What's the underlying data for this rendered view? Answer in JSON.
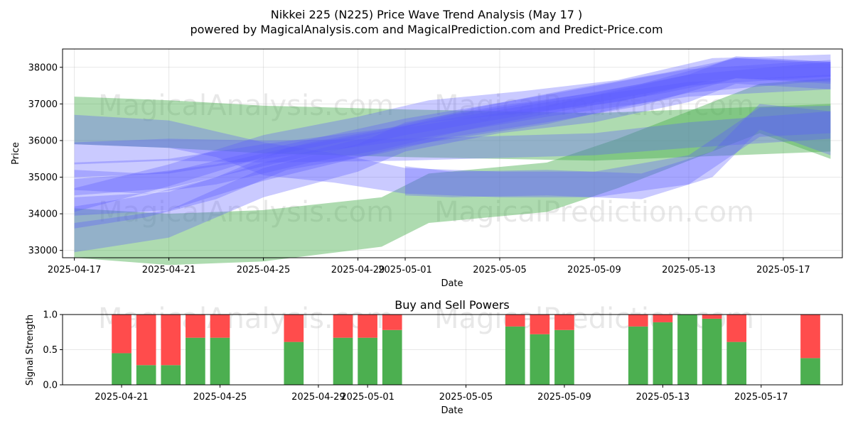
{
  "chart_data": [
    {
      "type": "area",
      "title": "Nikkei 225 (N225) Price Wave Trend Analysis (May 17 )",
      "subtitle": "powered by MagicalAnalysis.com and MagicalPrediction.com and Predict-Price.com",
      "xlabel": "Date",
      "ylabel": "Price",
      "xlim": [
        "2025-04-16.5",
        "2025-05-19.5"
      ],
      "ylim": [
        32800,
        38500
      ],
      "x_ticks": [
        "2025-04-17",
        "2025-04-21",
        "2025-04-25",
        "2025-04-29",
        "2025-05-01",
        "2025-05-05",
        "2025-05-09",
        "2025-05-13",
        "2025-05-17"
      ],
      "y_ticks": [
        33000,
        34000,
        35000,
        36000,
        37000,
        38000
      ],
      "grid": true,
      "watermarks": [
        "MagicalAnalysis.com",
        "MagicalPrediction.com",
        "MagicalAnalysis.com",
        "MagicalPrediction.com"
      ],
      "colors": {
        "up": "#4caf50",
        "down": "#5a5aff"
      },
      "series": [
        {
          "color": "green",
          "bands": [
            {
              "x": "2025-04-17",
              "lo": 35900,
              "hi": 37200
            },
            {
              "x": "2025-04-21",
              "lo": 35800,
              "hi": 37100
            },
            {
              "x": "2025-04-25",
              "lo": 35650,
              "hi": 36950
            },
            {
              "x": "2025-05-01",
              "lo": 35550,
              "hi": 36850
            },
            {
              "x": "2025-05-09",
              "lo": 35450,
              "hi": 36750
            },
            {
              "x": "2025-05-19",
              "lo": 35700,
              "hi": 37000
            }
          ]
        },
        {
          "color": "green",
          "bands": [
            {
              "x": "2025-04-17",
              "lo": 32800,
              "hi": 34150
            },
            {
              "x": "2025-04-21",
              "lo": 32600,
              "hi": 34000
            },
            {
              "x": "2025-04-25",
              "lo": 32700,
              "hi": 34100
            },
            {
              "x": "2025-04-30",
              "lo": 33100,
              "hi": 34450
            },
            {
              "x": "2025-05-02",
              "lo": 33750,
              "hi": 35100
            },
            {
              "x": "2025-05-07",
              "lo": 34050,
              "hi": 35400
            },
            {
              "x": "2025-05-10",
              "lo": 34700,
              "hi": 36050
            },
            {
              "x": "2025-05-13",
              "lo": 35450,
              "hi": 36800
            },
            {
              "x": "2025-05-16",
              "lo": 36200,
              "hi": 37550
            },
            {
              "x": "2025-05-19",
              "lo": 35500,
              "hi": 37700
            }
          ]
        },
        {
          "color": "blue",
          "bands": [
            {
              "x": "2025-04-17",
              "lo": 35900,
              "hi": 36700
            },
            {
              "x": "2025-04-21",
              "lo": 35800,
              "hi": 36550
            },
            {
              "x": "2025-04-23",
              "lo": 35550,
              "hi": 36250
            },
            {
              "x": "2025-04-25",
              "lo": 35050,
              "hi": 35950
            },
            {
              "x": "2025-04-28",
              "lo": 34850,
              "hi": 35650
            },
            {
              "x": "2025-05-01",
              "lo": 34550,
              "hi": 35250
            },
            {
              "x": "2025-05-05",
              "lo": 34450,
              "hi": 35150
            },
            {
              "x": "2025-05-09",
              "lo": 34450,
              "hi": 35150
            },
            {
              "x": "2025-05-13",
              "lo": 34800,
              "hi": 35600
            },
            {
              "x": "2025-05-16",
              "lo": 36100,
              "hi": 36900
            },
            {
              "x": "2025-05-19",
              "lo": 36200,
              "hi": 36950
            }
          ]
        },
        {
          "color": "blue",
          "bands": [
            {
              "x": "2025-04-17",
              "lo": 35350,
              "hi": 35950
            },
            {
              "x": "2025-04-21",
              "lo": 35450,
              "hi": 36050
            },
            {
              "x": "2025-04-25",
              "lo": 35400,
              "hi": 36000
            },
            {
              "x": "2025-05-01",
              "lo": 35450,
              "hi": 36050
            },
            {
              "x": "2025-05-09",
              "lo": 35600,
              "hi": 36200
            },
            {
              "x": "2025-05-13",
              "lo": 35800,
              "hi": 36500
            },
            {
              "x": "2025-05-19",
              "lo": 36050,
              "hi": 36800
            }
          ]
        },
        {
          "color": "blue",
          "bands": [
            {
              "x": "2025-04-17",
              "lo": 32950,
              "hi": 33750
            },
            {
              "x": "2025-04-21",
              "lo": 33350,
              "hi": 34100
            },
            {
              "x": "2025-04-25",
              "lo": 34450,
              "hi": 35250
            },
            {
              "x": "2025-04-29",
              "lo": 35150,
              "hi": 35900
            },
            {
              "x": "2025-05-01",
              "lo": 35700,
              "hi": 36500
            },
            {
              "x": "2025-05-05",
              "lo": 36200,
              "hi": 36950
            },
            {
              "x": "2025-05-09",
              "lo": 36500,
              "hi": 37300
            },
            {
              "x": "2025-05-13",
              "lo": 37050,
              "hi": 37800
            },
            {
              "x": "2025-05-15",
              "lo": 37550,
              "hi": 38300
            },
            {
              "x": "2025-05-19",
              "lo": 37400,
              "hi": 38150
            }
          ]
        },
        {
          "color": "blue",
          "bands": [
            {
              "x": "2025-04-17",
              "lo": 34050,
              "hi": 34700
            },
            {
              "x": "2025-04-21",
              "lo": 34750,
              "hi": 35350
            },
            {
              "x": "2025-04-25",
              "lo": 35550,
              "hi": 36150
            },
            {
              "x": "2025-04-29",
              "lo": 36050,
              "hi": 36650
            },
            {
              "x": "2025-05-02",
              "lo": 36500,
              "hi": 37100
            },
            {
              "x": "2025-05-06",
              "lo": 36750,
              "hi": 37350
            },
            {
              "x": "2025-05-10",
              "lo": 37050,
              "hi": 37650
            },
            {
              "x": "2025-05-14",
              "lo": 37650,
              "hi": 38250
            },
            {
              "x": "2025-05-19",
              "lo": 37750,
              "hi": 38350
            }
          ]
        },
        {
          "color": "blue",
          "bands": [
            {
              "x": "2025-04-17",
              "lo": 33600,
              "hi": 34200
            },
            {
              "x": "2025-04-20",
              "lo": 33900,
              "hi": 34500
            },
            {
              "x": "2025-04-23",
              "lo": 34400,
              "hi": 35000
            },
            {
              "x": "2025-04-26",
              "lo": 35200,
              "hi": 35800
            },
            {
              "x": "2025-04-30",
              "lo": 35650,
              "hi": 36250
            },
            {
              "x": "2025-05-03",
              "lo": 36100,
              "hi": 36700
            },
            {
              "x": "2025-05-07",
              "lo": 36500,
              "hi": 37100
            },
            {
              "x": "2025-05-11",
              "lo": 36950,
              "hi": 37550
            },
            {
              "x": "2025-05-15",
              "lo": 37700,
              "hi": 38250
            },
            {
              "x": "2025-05-19",
              "lo": 37600,
              "hi": 38150
            }
          ]
        },
        {
          "color": "blue",
          "bands": [
            {
              "x": "2025-04-17",
              "lo": 34650,
              "hi": 35200
            },
            {
              "x": "2025-04-20",
              "lo": 34550,
              "hi": 35100
            },
            {
              "x": "2025-04-23",
              "lo": 34800,
              "hi": 35350
            },
            {
              "x": "2025-04-27",
              "lo": 35400,
              "hi": 35950
            },
            {
              "x": "2025-04-30",
              "lo": 35750,
              "hi": 36300
            },
            {
              "x": "2025-05-04",
              "lo": 36350,
              "hi": 36900
            },
            {
              "x": "2025-05-08",
              "lo": 36850,
              "hi": 37400
            },
            {
              "x": "2025-05-12",
              "lo": 37300,
              "hi": 37850
            },
            {
              "x": "2025-05-15",
              "lo": 37700,
              "hi": 38250
            },
            {
              "x": "2025-05-19",
              "lo": 37550,
              "hi": 38100
            }
          ]
        },
        {
          "color": "blue",
          "bands": [
            {
              "x": "2025-04-17",
              "lo": 33950,
              "hi": 34450
            },
            {
              "x": "2025-04-21",
              "lo": 34100,
              "hi": 34600
            },
            {
              "x": "2025-04-25",
              "lo": 34900,
              "hi": 35400
            },
            {
              "x": "2025-05-01",
              "lo": 35850,
              "hi": 36350
            },
            {
              "x": "2025-05-07",
              "lo": 36450,
              "hi": 36950
            },
            {
              "x": "2025-05-13",
              "lo": 37300,
              "hi": 37800
            },
            {
              "x": "2025-05-19",
              "lo": 37650,
              "hi": 38150
            }
          ]
        },
        {
          "color": "blue",
          "bands": [
            {
              "x": "2025-04-17",
              "lo": 35000,
              "hi": 35400
            },
            {
              "x": "2025-04-21",
              "lo": 35100,
              "hi": 35500
            },
            {
              "x": "2025-04-25",
              "lo": 35500,
              "hi": 35900
            },
            {
              "x": "2025-05-01",
              "lo": 36000,
              "hi": 36400
            },
            {
              "x": "2025-05-07",
              "lo": 36650,
              "hi": 37050
            },
            {
              "x": "2025-05-13",
              "lo": 37200,
              "hi": 37600
            },
            {
              "x": "2025-05-19",
              "lo": 37400,
              "hi": 37800
            }
          ]
        },
        {
          "color": "blue",
          "bands": [
            {
              "x": "2025-04-17",
              "lo": 34500,
              "hi": 34950
            },
            {
              "x": "2025-04-21",
              "lo": 34700,
              "hi": 35150
            },
            {
              "x": "2025-04-25",
              "lo": 35300,
              "hi": 35750
            },
            {
              "x": "2025-05-01",
              "lo": 36150,
              "hi": 36600
            },
            {
              "x": "2025-05-07",
              "lo": 36800,
              "hi": 37250
            },
            {
              "x": "2025-05-13",
              "lo": 37500,
              "hi": 37950
            },
            {
              "x": "2025-05-19",
              "lo": 37750,
              "hi": 38200
            }
          ]
        },
        {
          "color": "blue",
          "bands": [
            {
              "x": "2025-05-01",
              "lo": 34500,
              "hi": 35300
            },
            {
              "x": "2025-05-03",
              "lo": 34450,
              "hi": 35150
            },
            {
              "x": "2025-05-07",
              "lo": 34500,
              "hi": 35200
            },
            {
              "x": "2025-05-11",
              "lo": 34400,
              "hi": 35100
            },
            {
              "x": "2025-05-14",
              "lo": 35000,
              "hi": 35700
            },
            {
              "x": "2025-05-16",
              "lo": 36300,
              "hi": 37000
            },
            {
              "x": "2025-05-19",
              "lo": 35600,
              "hi": 36800
            }
          ]
        }
      ]
    },
    {
      "type": "bar",
      "stacked": true,
      "title": "Buy and Sell Powers",
      "xlabel": "Date",
      "ylabel": "Signal Strength",
      "ylim": [
        0,
        1.0
      ],
      "y_ticks": [
        "0.0",
        "0.5",
        "1.0"
      ],
      "x_ticks": [
        "2025-04-21",
        "2025-04-25",
        "2025-04-29",
        "2025-05-01",
        "2025-05-05",
        "2025-05-09",
        "2025-05-13",
        "2025-05-17"
      ],
      "grid": true,
      "watermarks": [
        "MagicalAnalysis.com",
        "MagicalPrediction.com"
      ],
      "colors": {
        "buy": "#4caf50",
        "sell": "#ff4c4c"
      },
      "categories": [
        "2025-04-21",
        "2025-04-22",
        "2025-04-23",
        "2025-04-24",
        "2025-04-25",
        "2025-04-28",
        "2025-04-30",
        "2025-05-01",
        "2025-05-02",
        "2025-05-07",
        "2025-05-08",
        "2025-05-09",
        "2025-05-12",
        "2025-05-13",
        "2025-05-14",
        "2025-05-15",
        "2025-05-16",
        "2025-05-19"
      ],
      "series": [
        {
          "name": "buy",
          "values": [
            0.45,
            0.28,
            0.28,
            0.67,
            0.67,
            0.61,
            0.67,
            0.67,
            0.78,
            0.83,
            0.72,
            0.78,
            0.83,
            0.89,
            1.0,
            0.94,
            0.61,
            0.38
          ]
        },
        {
          "name": "sell",
          "values": [
            0.55,
            0.72,
            0.72,
            0.33,
            0.33,
            0.39,
            0.33,
            0.33,
            0.22,
            0.17,
            0.28,
            0.22,
            0.17,
            0.11,
            0.0,
            0.06,
            0.39,
            0.62
          ]
        }
      ]
    }
  ]
}
